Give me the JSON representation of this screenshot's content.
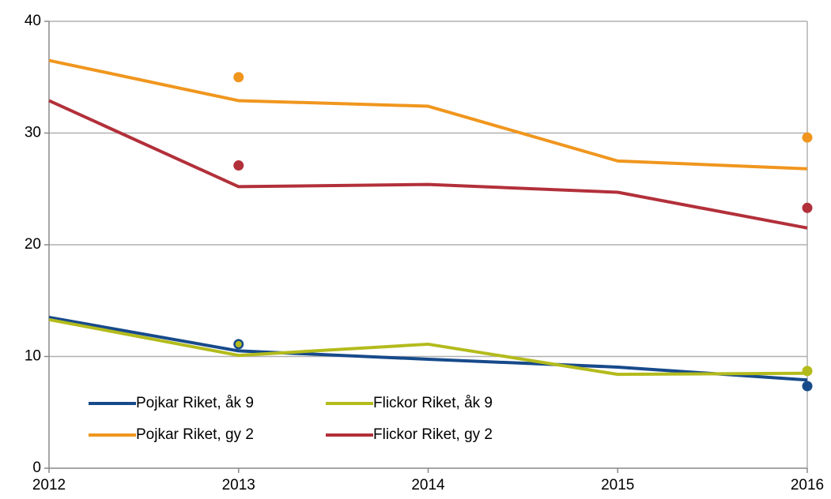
{
  "chart_data": {
    "type": "line",
    "x": [
      2012,
      2013,
      2014,
      2015,
      2016
    ],
    "xlim": [
      2012,
      2016
    ],
    "xticks": [
      2012,
      2013,
      2014,
      2015,
      2016
    ],
    "ylim": [
      0,
      40
    ],
    "yticks": [
      0,
      10,
      20,
      30,
      40
    ],
    "grid": true,
    "legend": "lower left",
    "series": [
      {
        "name": "Pojkar Riket, åk 9",
        "color": "#174a8b",
        "values": [
          13.5,
          10.5,
          9.75,
          9.05,
          7.9
        ],
        "markers": [
          null,
          11.1,
          null,
          null,
          7.35
        ]
      },
      {
        "name": "Flickor Riket, åk 9",
        "color": "#b3bb1c",
        "values": [
          13.3,
          10.1,
          11.1,
          8.4,
          8.5
        ],
        "markers": [
          null,
          11.1,
          null,
          null,
          8.7
        ]
      },
      {
        "name": "Pojkar Riket, gy 2",
        "color": "#f0961e",
        "values": [
          36.5,
          32.9,
          32.4,
          27.5,
          26.8
        ],
        "markers": [
          null,
          35.0,
          null,
          null,
          29.6
        ]
      },
      {
        "name": "Flickor Riket, gy 2",
        "color": "#b2303a",
        "values": [
          32.9,
          25.2,
          25.4,
          24.7,
          21.5
        ],
        "markers": [
          null,
          27.1,
          null,
          null,
          23.3
        ]
      }
    ]
  }
}
